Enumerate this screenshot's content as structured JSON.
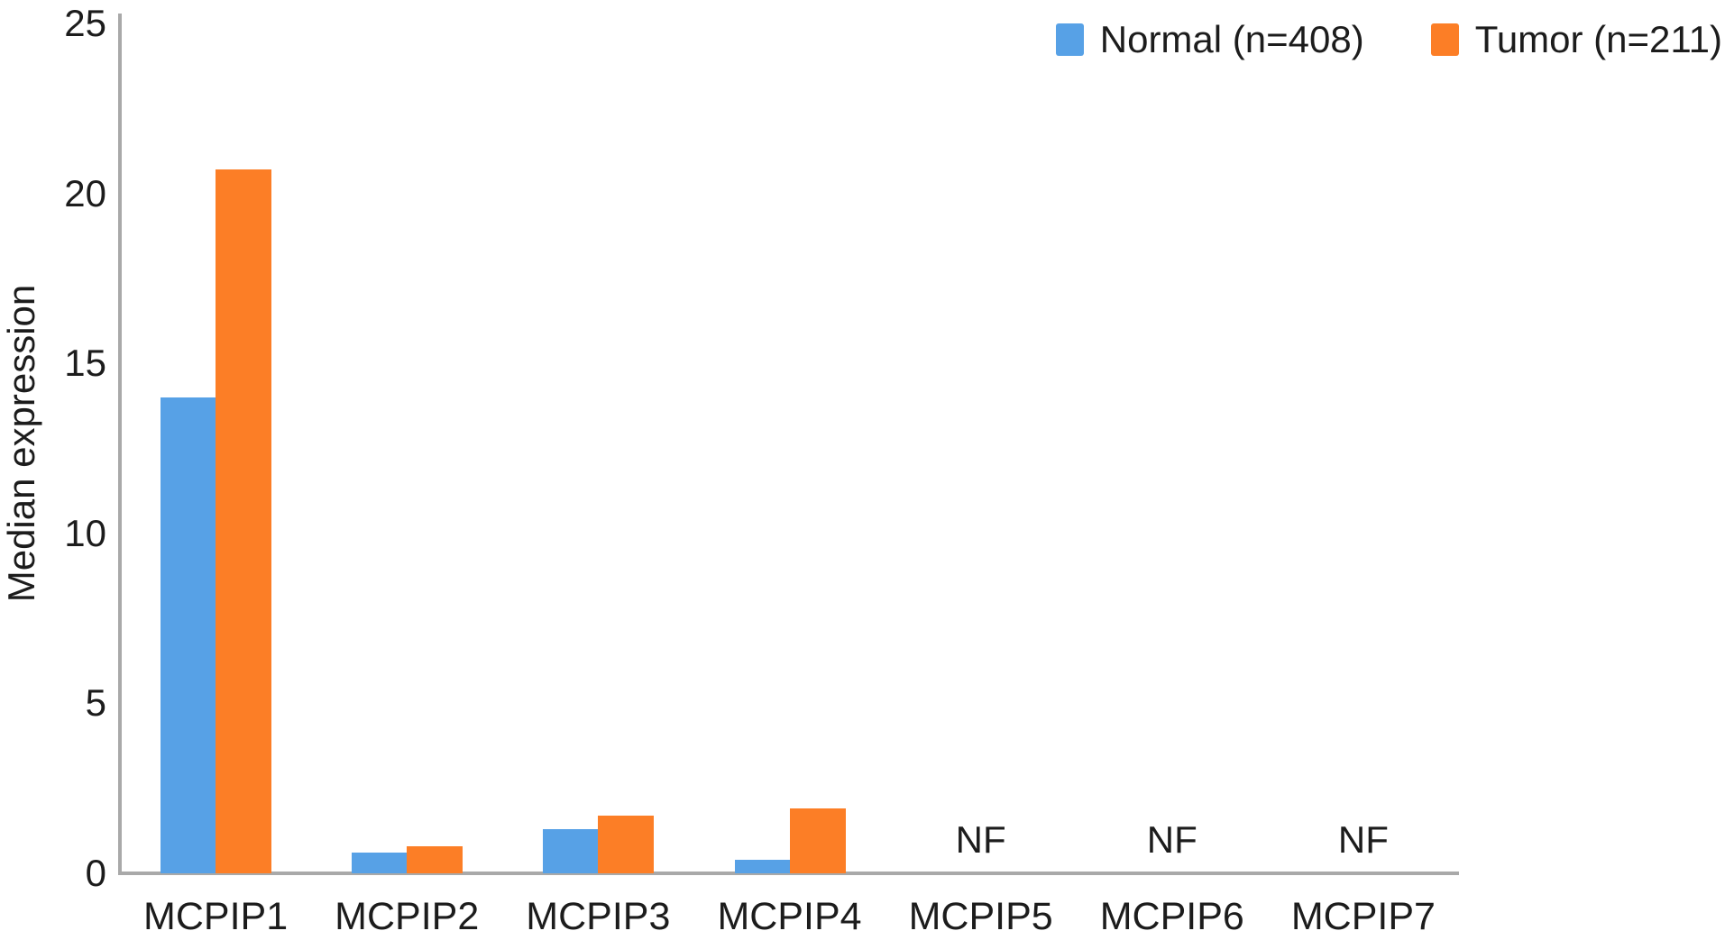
{
  "figure": {
    "background_color": "#ffffff",
    "axis_color": "#a9a9a9"
  },
  "chart_data": {
    "type": "bar",
    "title": "",
    "xlabel": "",
    "ylabel": "Median expression",
    "categories": [
      "MCPIP1",
      "MCPIP2",
      "MCPIP3",
      "MCPIP4",
      "MCPIP5",
      "MCPIP6",
      "MCPIP7"
    ],
    "series": [
      {
        "name": "Normal (n=408)",
        "color": "#57a1e6",
        "values": [
          14.0,
          0.6,
          1.3,
          0.4,
          null,
          null,
          null
        ]
      },
      {
        "name": "Tumor (n=211)",
        "color": "#fc7e26",
        "values": [
          20.7,
          0.8,
          1.7,
          1.9,
          null,
          null,
          null
        ]
      }
    ],
    "not_found_label": "NF",
    "not_found_categories": [
      "MCPIP5",
      "MCPIP6",
      "MCPIP7"
    ],
    "ylim": [
      0,
      25
    ],
    "yticks": [
      0,
      5,
      10,
      15,
      20,
      25
    ],
    "grid": false,
    "legend_position": "top-right"
  }
}
